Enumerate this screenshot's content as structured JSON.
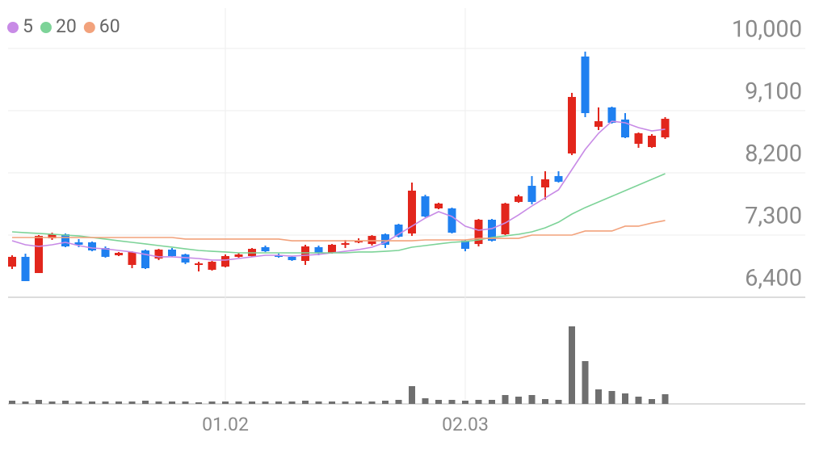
{
  "chart_data": {
    "type": "candlestick",
    "categories": [
      null,
      null,
      null,
      null,
      null,
      null,
      null,
      null,
      null,
      null,
      null,
      null,
      null,
      null,
      null,
      null,
      "01.02",
      null,
      null,
      null,
      null,
      null,
      null,
      null,
      null,
      null,
      null,
      null,
      null,
      null,
      null,
      null,
      null,
      null,
      "02.03",
      null,
      null,
      null,
      null,
      null,
      null,
      null,
      null,
      null,
      null,
      null,
      null,
      null,
      null,
      null
    ],
    "open": [
      6844,
      6985,
      6751,
      7253,
      7312,
      7195,
      7195,
      7113,
      7008,
      6868,
      7078,
      6961,
      7090,
      7020,
      6880,
      6798,
      6844,
      6985,
      6996,
      7125,
      7008,
      6985,
      6926,
      7125,
      7043,
      7171,
      7195,
      7171,
      7312,
      7452,
      7323,
      7861,
      7686,
      7686,
      7218,
      7171,
      7522,
      7312,
      7780,
      8013,
      7990,
      8154,
      8481,
      9884,
      8867,
      9147,
      8972,
      8621,
      8574,
      8714
    ],
    "high": [
      7008,
      7031,
      7300,
      7335,
      7323,
      7242,
      7207,
      7136,
      7055,
      7066,
      7090,
      7101,
      7113,
      7031,
      6914,
      6926,
      7020,
      7043,
      7113,
      7148,
      7031,
      6996,
      7160,
      7148,
      7171,
      7230,
      7253,
      7300,
      7323,
      7464,
      8060,
      7884,
      7768,
      7698,
      7230,
      7534,
      7534,
      7768,
      7884,
      8154,
      8224,
      8224,
      9358,
      9955,
      9147,
      9159,
      9065,
      8785,
      8761,
      9007
    ],
    "low": [
      6809,
      6634,
      6751,
      7230,
      7125,
      7125,
      7066,
      6973,
      6996,
      6821,
      6809,
      6938,
      6985,
      6880,
      6774,
      6786,
      6833,
      6973,
      6985,
      7055,
      6973,
      6926,
      6868,
      7008,
      7031,
      7113,
      7183,
      7148,
      7113,
      7265,
      7288,
      7557,
      7674,
      7323,
      7066,
      7136,
      7207,
      7300,
      7768,
      7745,
      7815,
      8060,
      8457,
      9007,
      8820,
      8913,
      8703,
      8563,
      8563,
      8691
    ],
    "close": [
      6985,
      6634,
      7288,
      7312,
      7136,
      7160,
      7078,
      6985,
      7043,
      7055,
      6821,
      7090,
      6996,
      6903,
      6891,
      6914,
      6996,
      7020,
      7101,
      7066,
      6985,
      6938,
      7136,
      7043,
      7160,
      7183,
      7218,
      7288,
      7160,
      7277,
      7943,
      7569,
      7756,
      7335,
      7101,
      7522,
      7218,
      7756,
      7861,
      7780,
      8107,
      8072,
      9299,
      9065,
      8948,
      8925,
      8714,
      8773,
      8738,
      8983
    ],
    "volume": [
      4,
      3,
      5,
      3,
      4,
      3,
      3,
      3,
      3,
      3,
      4,
      3,
      3,
      3,
      2,
      3,
      3,
      3,
      3,
      3,
      3,
      3,
      4,
      3,
      3,
      3,
      3,
      3,
      4,
      5,
      22,
      7,
      5,
      5,
      4,
      5,
      5,
      11,
      9,
      11,
      6,
      5,
      96,
      53,
      18,
      16,
      13,
      9,
      6,
      12
    ],
    "series": [
      {
        "name": "5",
        "color": "#c88be6",
        "values": [
          7218,
          7160,
          7136,
          7160,
          7195,
          7148,
          7113,
          7101,
          7078,
          7055,
          7020,
          6985,
          6985,
          6973,
          6961,
          6938,
          6938,
          6961,
          6985,
          7008,
          7008,
          6996,
          7008,
          7020,
          7043,
          7066,
          7090,
          7125,
          7195,
          7312,
          7429,
          7546,
          7639,
          7569,
          7429,
          7370,
          7394,
          7475,
          7592,
          7721,
          7838,
          7955,
          8247,
          8539,
          8773,
          8948,
          8925,
          8855,
          8808,
          8832
        ]
      },
      {
        "name": "20",
        "color": "#7dd398",
        "values": [
          7347,
          7335,
          7324,
          7312,
          7300,
          7288,
          7265,
          7242,
          7218,
          7195,
          7172,
          7148,
          7125,
          7101,
          7078,
          7066,
          7055,
          7043,
          7043,
          7043,
          7043,
          7043,
          7043,
          7043,
          7043,
          7043,
          7055,
          7055,
          7066,
          7078,
          7125,
          7148,
          7172,
          7195,
          7207,
          7230,
          7265,
          7288,
          7312,
          7347,
          7405,
          7487,
          7604,
          7698,
          7779,
          7861,
          7943,
          8025,
          8107,
          8189
        ]
      },
      {
        "name": "60",
        "color": "#f2a27c",
        "values": [
          7265,
          7265,
          7265,
          7265,
          7265,
          7265,
          7265,
          7265,
          7265,
          7265,
          7265,
          7265,
          7265,
          7242,
          7242,
          7242,
          7242,
          7242,
          7242,
          7242,
          7242,
          7218,
          7218,
          7218,
          7218,
          7218,
          7218,
          7218,
          7218,
          7218,
          7218,
          7230,
          7230,
          7230,
          7230,
          7253,
          7253,
          7253,
          7253,
          7300,
          7300,
          7300,
          7300,
          7359,
          7359,
          7359,
          7429,
          7429,
          7475,
          7511
        ]
      }
    ],
    "up_color": "#e2261c",
    "down_color": "#1f80f0",
    "volume_color": "#6f6f6f",
    "ylim": [
      6400,
      10585
    ],
    "yticks": [
      {
        "value": 6400,
        "label": "6,400"
      },
      {
        "value": 7300,
        "label": "7,300"
      },
      {
        "value": 8200,
        "label": "8,200"
      },
      {
        "value": 9100,
        "label": "9,100"
      },
      {
        "value": 10000,
        "label": "10,000"
      }
    ],
    "y2lim": [
      0,
      130
    ],
    "grid": true
  }
}
